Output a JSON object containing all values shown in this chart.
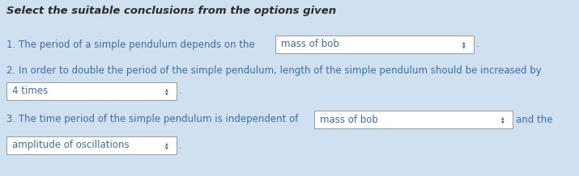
{
  "title": "Select the suitable conclusions from the options given",
  "title_fontsize": 9.5,
  "body_fontsize": 8.5,
  "dropdown_fontsize": 8.5,
  "text_color": "#3a6ea5",
  "title_color": "#2b2b2b",
  "bg_color": "#cfe0f0",
  "box_bg": "#ffffff",
  "box_border": "#999999",
  "line1_prefix": "1. The period of a simple pendulum depends on the",
  "line1_dropdown": "mass of bob",
  "line2_text": "2. In order to double the period of the simple pendulum, length of the simple pendulum should be increased by",
  "line2_dropdown": "4 times",
  "line3_prefix": "3. The time period of the simple pendulum is independent of",
  "line3_dropdown": "mass of bob",
  "line3_suffix": "and the",
  "line4_dropdown": "amplitude of oscillations",
  "arrow_color": "#666666",
  "fig_width": 7.15,
  "fig_height": 2.18,
  "dpi": 100
}
